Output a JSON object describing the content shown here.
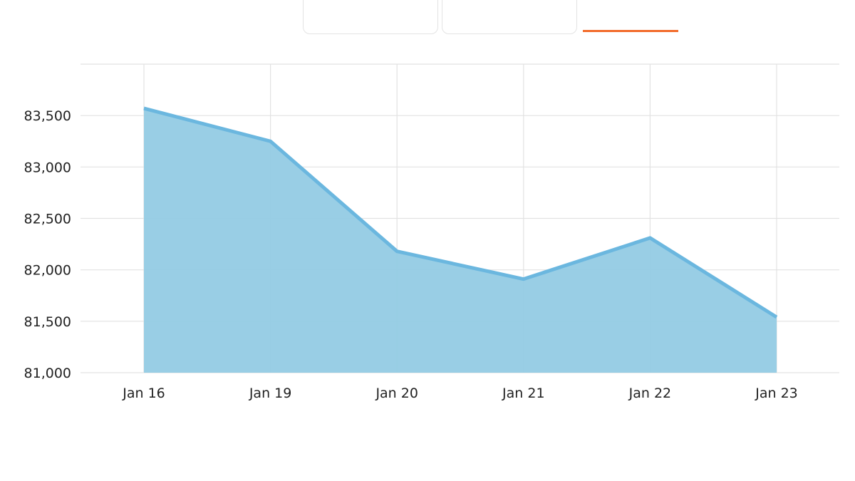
{
  "range_tabs": [
    {
      "label": ""
    },
    {
      "label": ""
    },
    {
      "label": "",
      "active": true
    }
  ],
  "colors": {
    "area_fill": "#94cbe4",
    "line": "#6bb7df",
    "grid": "#e2e2e2",
    "active_tab": "#f26b2a"
  },
  "chart_data": {
    "type": "area",
    "title": "",
    "xlabel": "",
    "ylabel": "",
    "categories": [
      "Jan 16",
      "Jan 19",
      "Jan 20",
      "Jan 21",
      "Jan 22",
      "Jan 23"
    ],
    "series": [
      {
        "values": [
          83570,
          83250,
          82180,
          81910,
          82310,
          81540
        ]
      }
    ],
    "ylim": [
      81000,
      84000
    ],
    "y_ticks": [
      81000,
      81500,
      82000,
      82500,
      83000,
      83500
    ],
    "y_tick_labels": [
      "81,000",
      "81,500",
      "82,000",
      "82,500",
      "83,000",
      "83,500"
    ],
    "grid": true,
    "legend": "none"
  }
}
